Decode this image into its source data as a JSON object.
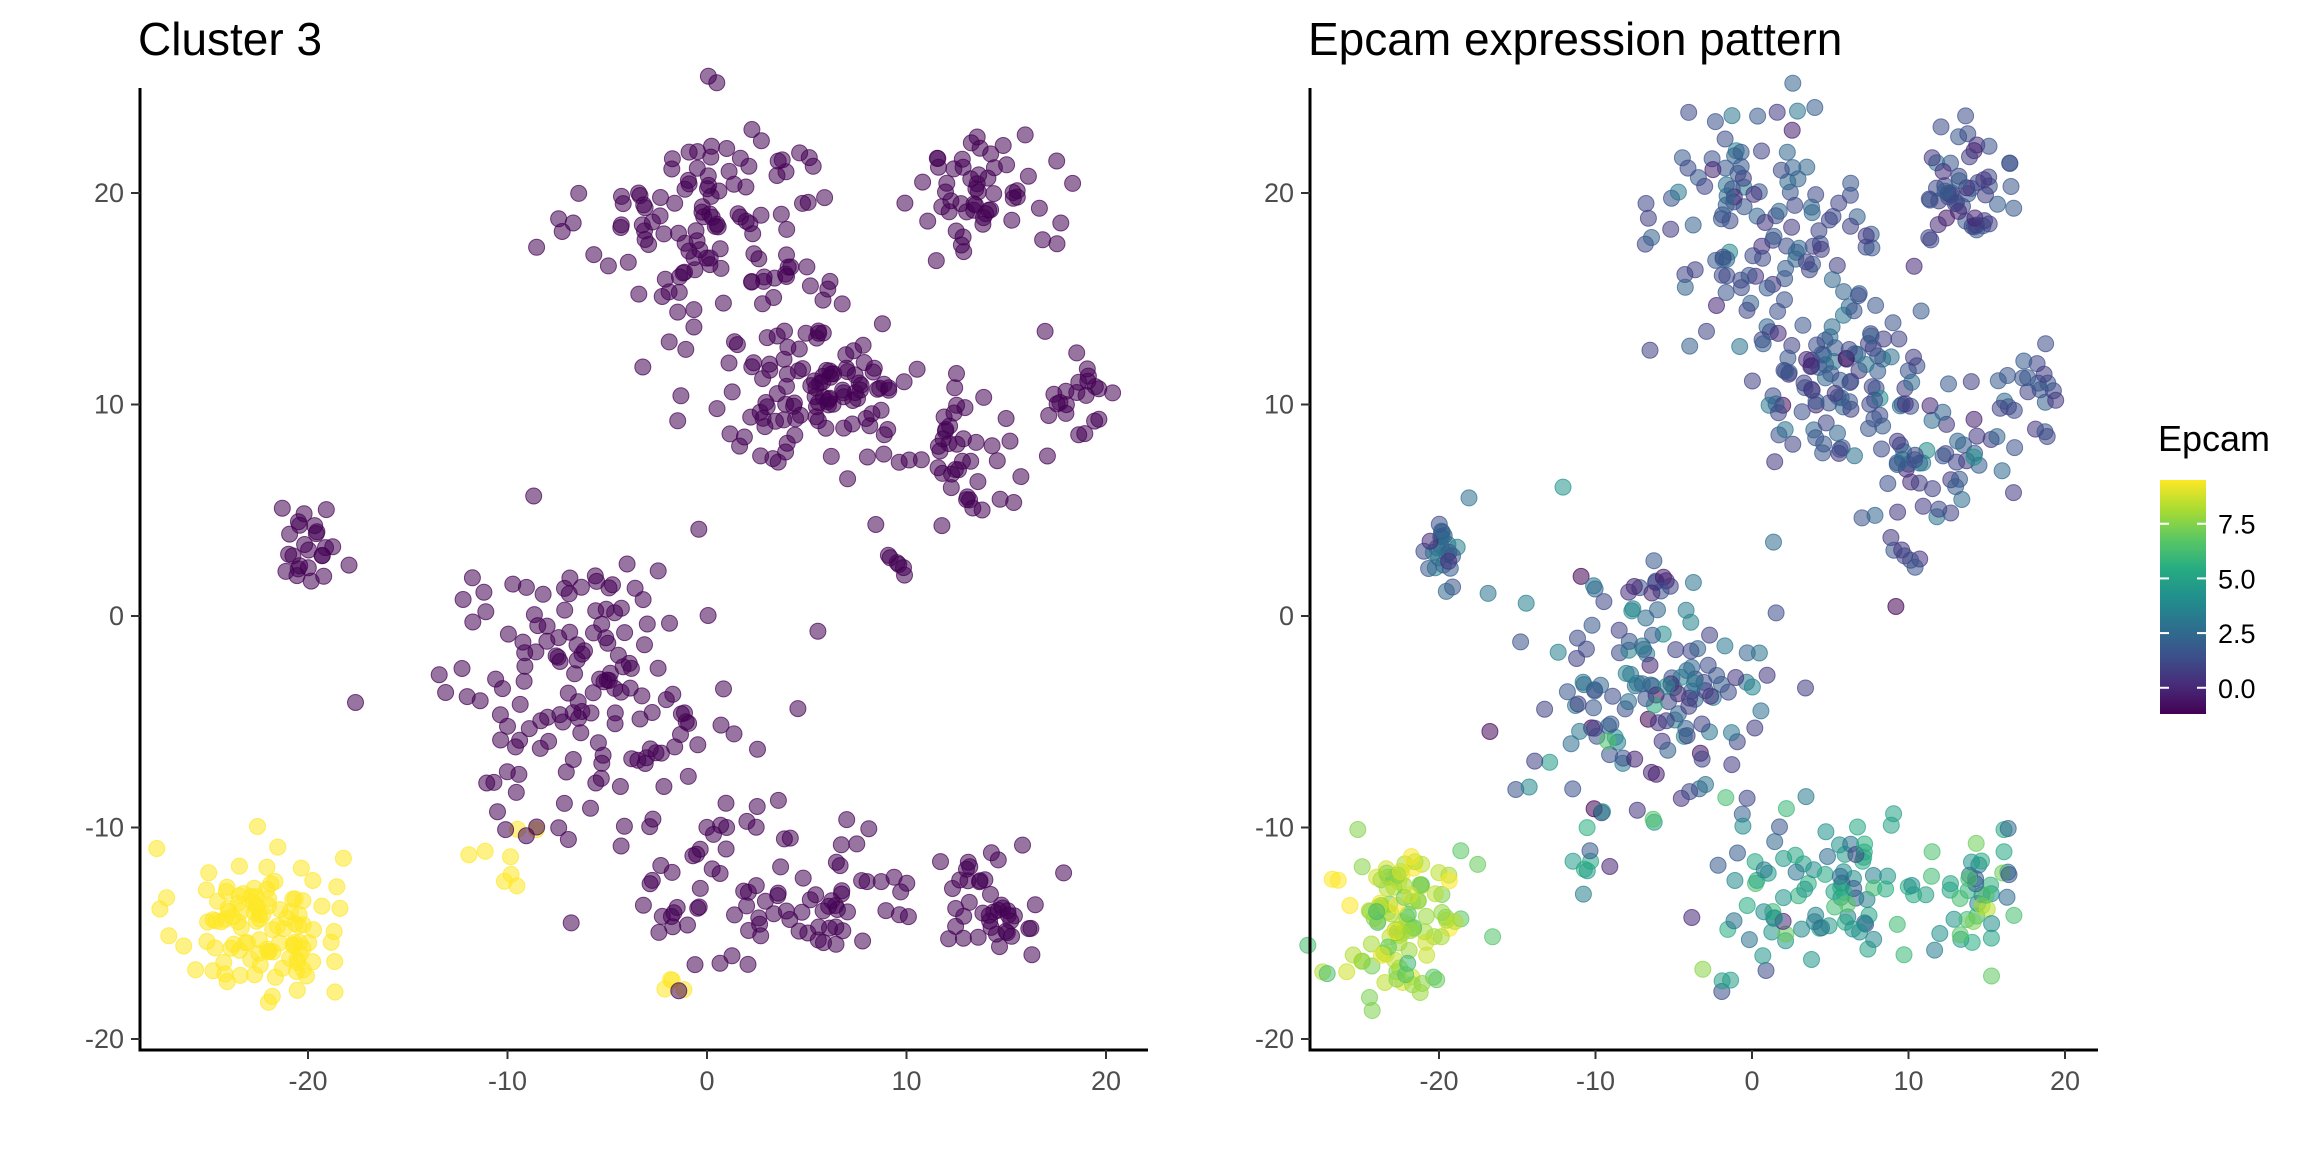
{
  "chart_data": [
    {
      "type": "scatter",
      "title": "Cluster 3",
      "xlim": [
        -28,
        22
      ],
      "ylim": [
        -20.5,
        25
      ],
      "x_ticks": [
        -20,
        -10,
        0,
        10,
        20
      ],
      "y_ticks": [
        -20,
        -10,
        0,
        10,
        20
      ],
      "x_tick_labels": [
        "-20",
        "-10",
        "0",
        "10",
        "20"
      ],
      "y_tick_labels": [
        "-20",
        "-10",
        "0",
        "10",
        "20"
      ],
      "xlabel": "",
      "ylabel": "",
      "grid": false,
      "legend": "none",
      "colors": {
        "in_cluster": "#fde725",
        "other": "#440154"
      },
      "clusters": [
        {
          "group": "in_cluster",
          "cx": -22.5,
          "cy": -14.5,
          "sx": 2.1,
          "sy": 1.8,
          "n": 110
        },
        {
          "group": "in_cluster",
          "cx": -10.2,
          "cy": -11.5,
          "sx": 0.8,
          "sy": 0.9,
          "n": 8
        },
        {
          "group": "in_cluster",
          "cx": -1.8,
          "cy": -17.3,
          "sx": 0.5,
          "sy": 0.5,
          "n": 4
        },
        {
          "group": "other",
          "cx": 0.5,
          "cy": 18.5,
          "sx": 3.2,
          "sy": 2.6,
          "n": 120
        },
        {
          "group": "other",
          "cx": 14.0,
          "cy": 20.0,
          "sx": 1.7,
          "sy": 1.4,
          "n": 55
        },
        {
          "group": "other",
          "cx": 5.5,
          "cy": 11.0,
          "sx": 2.7,
          "sy": 2.1,
          "n": 110
        },
        {
          "group": "other",
          "cx": 12.5,
          "cy": 7.5,
          "sx": 2.6,
          "sy": 1.8,
          "n": 50
        },
        {
          "group": "other",
          "cx": 18.5,
          "cy": 10.8,
          "sx": 1.1,
          "sy": 1.2,
          "n": 22
        },
        {
          "group": "other",
          "cx": 9.8,
          "cy": 2.5,
          "sx": 0.3,
          "sy": 0.5,
          "n": 6
        },
        {
          "group": "other",
          "cx": -20.0,
          "cy": 3.3,
          "sx": 0.7,
          "sy": 1.0,
          "n": 25
        },
        {
          "group": "other",
          "cx": -6.0,
          "cy": 1.5,
          "sx": 1.2,
          "sy": 0.3,
          "n": 6
        },
        {
          "group": "other",
          "cx": -6.0,
          "cy": -4.0,
          "sx": 4.0,
          "sy": 3.2,
          "n": 150
        },
        {
          "group": "other",
          "cx": 4.0,
          "cy": -13.0,
          "sx": 3.5,
          "sy": 1.9,
          "n": 90
        },
        {
          "group": "other",
          "cx": 14.5,
          "cy": -13.5,
          "sx": 1.5,
          "sy": 1.3,
          "n": 40
        }
      ]
    },
    {
      "type": "scatter",
      "title": "Epcam expression pattern",
      "xlim": [
        -28,
        22
      ],
      "ylim": [
        -20.5,
        25
      ],
      "x_ticks": [
        -20,
        -10,
        0,
        10,
        20
      ],
      "y_ticks": [
        -20,
        -10,
        0,
        10,
        20
      ],
      "x_tick_labels": [
        "-20",
        "-10",
        "0",
        "10",
        "20"
      ],
      "y_tick_labels": [
        "-20",
        "-10",
        "0",
        "10",
        "20"
      ],
      "xlabel": "",
      "ylabel": "",
      "grid": false,
      "legend": "right",
      "colorbar": {
        "title": "Epcam",
        "min": -1.2,
        "max": 9.5,
        "ticks": [
          0.0,
          2.5,
          5.0,
          7.5
        ],
        "tick_labels": [
          "0.0",
          "2.5",
          "5.0",
          "7.5"
        ],
        "colormap": "viridis",
        "stops": [
          "#440154",
          "#472c7a",
          "#3b518b",
          "#2c718e",
          "#21908d",
          "#27ad81",
          "#5cc863",
          "#aadc32",
          "#fde725"
        ]
      },
      "clusters": [
        {
          "mean": 8.0,
          "spread": 1.0,
          "cx": -22.5,
          "cy": -14.5,
          "sx": 2.1,
          "sy": 1.8,
          "n": 110
        },
        {
          "mean": 4.0,
          "spread": 2.0,
          "cx": -10.2,
          "cy": -11.5,
          "sx": 0.8,
          "sy": 0.9,
          "n": 8
        },
        {
          "mean": 4.0,
          "spread": 2.0,
          "cx": -1.8,
          "cy": -17.3,
          "sx": 0.5,
          "sy": 0.5,
          "n": 4
        },
        {
          "mean": 1.5,
          "spread": 0.8,
          "cx": 0.5,
          "cy": 18.5,
          "sx": 3.2,
          "sy": 2.6,
          "n": 120
        },
        {
          "mean": 1.2,
          "spread": 0.7,
          "cx": 14.0,
          "cy": 20.0,
          "sx": 1.7,
          "sy": 1.4,
          "n": 55
        },
        {
          "mean": 1.5,
          "spread": 0.8,
          "cx": 5.5,
          "cy": 11.0,
          "sx": 2.7,
          "sy": 2.1,
          "n": 110
        },
        {
          "mean": 1.6,
          "spread": 1.0,
          "cx": 12.5,
          "cy": 7.5,
          "sx": 2.6,
          "sy": 1.8,
          "n": 50
        },
        {
          "mean": 1.2,
          "spread": 0.6,
          "cx": 18.5,
          "cy": 10.8,
          "sx": 1.1,
          "sy": 1.2,
          "n": 22
        },
        {
          "mean": 0.6,
          "spread": 0.5,
          "cx": 9.8,
          "cy": 2.5,
          "sx": 0.3,
          "sy": 0.5,
          "n": 6
        },
        {
          "mean": 1.8,
          "spread": 1.0,
          "cx": -20.0,
          "cy": 3.3,
          "sx": 0.7,
          "sy": 1.0,
          "n": 25
        },
        {
          "mean": 0.8,
          "spread": 0.5,
          "cx": -6.0,
          "cy": 1.5,
          "sx": 1.2,
          "sy": 0.3,
          "n": 6
        },
        {
          "mean": 1.8,
          "spread": 1.8,
          "cx": -6.0,
          "cy": -4.0,
          "sx": 4.0,
          "sy": 3.2,
          "n": 150
        },
        {
          "mean": 4.2,
          "spread": 1.8,
          "cx": 4.0,
          "cy": -13.0,
          "sx": 3.5,
          "sy": 1.9,
          "n": 90
        },
        {
          "mean": 4.5,
          "spread": 1.8,
          "cx": 14.5,
          "cy": -13.5,
          "sx": 1.5,
          "sy": 1.3,
          "n": 40
        }
      ]
    }
  ]
}
